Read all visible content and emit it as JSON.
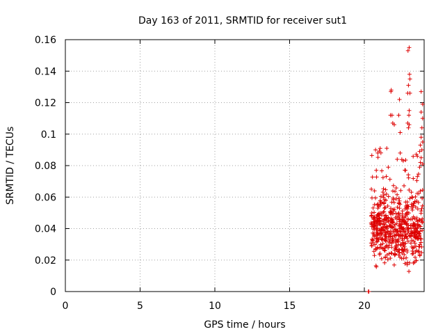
{
  "chart_data": {
    "type": "scatter",
    "title": "Day 163 of 2011, SRMTID for receiver sut1",
    "xlabel": "GPS time / hours",
    "ylabel": "SRMTID / TECUs",
    "xlim": [
      0,
      24
    ],
    "ylim": [
      0,
      0.16
    ],
    "xticks": [
      0,
      5,
      10,
      15,
      20
    ],
    "yticks": [
      0,
      0.02,
      0.04,
      0.06,
      0.08,
      0.1,
      0.12,
      0.14,
      0.16
    ],
    "ytick_labels": [
      "0",
      "0.02",
      "0.04",
      "0.06",
      "0.08",
      "0.1",
      "0.12",
      "0.14",
      "0.16"
    ],
    "grid": true,
    "marker": "plus",
    "color": "#dd0000",
    "series": [
      {
        "name": "sut1",
        "x_range": [
          20.3,
          23.9
        ],
        "y_range": [
          0.0,
          0.155
        ],
        "n_points": 620,
        "density_peak_y": 0.04,
        "points": [
          [
            20.27,
            0.0
          ],
          [
            20.28,
            0.0
          ],
          [
            20.29,
            0.0
          ],
          [
            20.3,
            0.0
          ],
          [
            23.0,
            0.155
          ],
          [
            22.92,
            0.153
          ],
          [
            23.02,
            0.138
          ],
          [
            23.05,
            0.135
          ],
          [
            22.95,
            0.131
          ],
          [
            22.9,
            0.126
          ],
          [
            23.05,
            0.126
          ],
          [
            21.8,
            0.128
          ],
          [
            21.78,
            0.127
          ],
          [
            23.8,
            0.127
          ],
          [
            22.35,
            0.122
          ],
          [
            23.9,
            0.119
          ],
          [
            21.75,
            0.112
          ],
          [
            21.85,
            0.112
          ],
          [
            22.3,
            0.112
          ],
          [
            23.0,
            0.115
          ],
          [
            22.98,
            0.112
          ],
          [
            23.8,
            0.114
          ],
          [
            23.9,
            0.11
          ],
          [
            21.9,
            0.107
          ],
          [
            22.0,
            0.106
          ],
          [
            22.9,
            0.107
          ],
          [
            23.0,
            0.106
          ],
          [
            22.95,
            0.104
          ],
          [
            23.85,
            0.104
          ],
          [
            22.4,
            0.101
          ],
          [
            23.8,
            0.098
          ],
          [
            23.75,
            0.093
          ],
          [
            23.9,
            0.095
          ],
          [
            20.75,
            0.09
          ],
          [
            20.9,
            0.088
          ],
          [
            21.5,
            0.091
          ],
          [
            22.4,
            0.088
          ],
          [
            23.7,
            0.089
          ],
          [
            23.85,
            0.09
          ],
          [
            23.8,
            0.085
          ],
          [
            23.75,
            0.082
          ],
          [
            23.9,
            0.081
          ],
          [
            20.8,
            0.077
          ],
          [
            21.6,
            0.079
          ],
          [
            22.2,
            0.084
          ],
          [
            22.6,
            0.083
          ],
          [
            22.75,
            0.077
          ],
          [
            23.7,
            0.079
          ]
        ]
      }
    ]
  }
}
